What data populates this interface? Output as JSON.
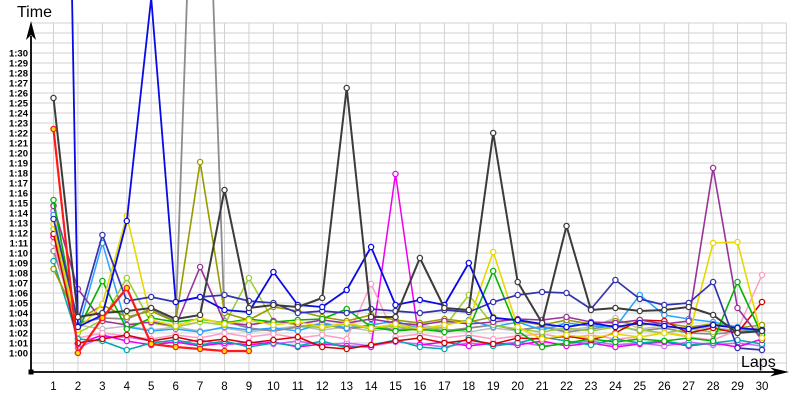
{
  "titles": {
    "y_axis": "Time",
    "x_axis": "Laps"
  },
  "colors": {
    "background": "#ffffff",
    "grid": "#d2d2d2",
    "axis": "#000000"
  },
  "chart_data": {
    "type": "line",
    "title": "",
    "xlabel": "Laps",
    "ylabel": "Time",
    "x_tick_labels": [
      "1",
      "2",
      "3",
      "4",
      "5",
      "6",
      "7",
      "8",
      "9",
      "10",
      "11",
      "12",
      "13",
      "14",
      "15",
      "16",
      "17",
      "18",
      "19",
      "20",
      "21",
      "22",
      "23",
      "24",
      "25",
      "26",
      "27",
      "28",
      "29",
      "30"
    ],
    "y_tick_labels": [
      "1:00",
      "1:01",
      "1:02",
      "1:03",
      "1:04",
      "1:05",
      "1:06",
      "1:07",
      "1:08",
      "1:09",
      "1:10",
      "1:11",
      "1:12",
      "1:13",
      "1:14",
      "1:15",
      "1:16",
      "1:17",
      "1:18",
      "1:19",
      "1:20",
      "1:21",
      "1:22",
      "1:23",
      "1:24",
      "1:25",
      "1:26",
      "1:27",
      "1:28",
      "1:29",
      "1:30"
    ],
    "y_tick_seconds_start": 60,
    "ylim_seconds": [
      59,
      93
    ],
    "xlim_laps": [
      1,
      30
    ],
    "grid": true,
    "legend": "none",
    "units_note": "values are lap times in seconds; 60 = 1:00; values above 93 plot off-chart",
    "series": [
      {
        "name": "silver",
        "color": "#BDBDBD",
        "width": 1.5,
        "marker_fill": "#ffffff",
        "values": [
          74.8,
          62.8,
          62.4,
          62.7,
          62.3,
          62.6,
          62.2,
          62.5,
          62.1,
          62.4,
          62.7,
          62.3,
          62.6,
          62.2,
          62.5,
          62.8,
          62.4,
          62.1,
          62.5,
          62.2,
          62.7,
          62.3,
          62.6,
          63.5,
          62.4,
          62.7,
          62.3,
          62.6,
          62.2,
          62.6
        ]
      },
      {
        "name": "gray",
        "color": "#8C8C8C",
        "width": 1.8,
        "marker_fill": "#ffffff",
        "values": [
          70.2,
          63.0,
          63.5,
          63.4,
          64.4,
          63.2,
          133.0,
          63.2,
          62.5,
          62.2,
          62.6,
          62.9,
          62.4,
          62.7,
          62.3,
          62.6,
          62.2,
          62.5,
          62.8,
          62.3,
          62.6,
          62.1,
          62.4,
          62.8,
          62.2,
          62.5,
          62.0,
          61.9,
          62.1,
          62.4
        ]
      },
      {
        "name": "violet",
        "color": "#CC66FF",
        "width": 1.5,
        "marker_fill": "#ffffff",
        "values": [
          74.2,
          60.5,
          61.6,
          61.6,
          61.2,
          61.0,
          61.3,
          60.8,
          61.1,
          60.9,
          61.2,
          60.8,
          61.0,
          60.7,
          61.1,
          60.9,
          60.6,
          61.0,
          60.8,
          61.1,
          60.7,
          60.9,
          61.2,
          60.8,
          61.0,
          60.7,
          61.1,
          60.8,
          61.0,
          60.7
        ]
      },
      {
        "name": "magenta",
        "color": "#EE00EE",
        "width": 1.5,
        "marker_fill": "#ffffff",
        "values": [
          71.6,
          60.9,
          61.8,
          61.2,
          60.8,
          61.1,
          60.7,
          61.0,
          60.8,
          61.1,
          60.6,
          60.9,
          60.7,
          60.6,
          77.9,
          60.8,
          61.1,
          60.7,
          61.0,
          60.8,
          61.2,
          60.7,
          61.0,
          60.6,
          60.9,
          61.1,
          60.7,
          61.0,
          60.6,
          61.4
        ]
      },
      {
        "name": "pink",
        "color": "#FF9DC5",
        "width": 1.5,
        "marker_fill": "#ffffff",
        "values": [
          71.0,
          61.5,
          62.0,
          61.7,
          61.4,
          61.8,
          61.5,
          62.0,
          61.6,
          61.9,
          61.5,
          61.8,
          61.4,
          66.9,
          61.6,
          61.9,
          61.5,
          61.8,
          61.4,
          61.7,
          61.9,
          61.5,
          61.8,
          61.4,
          61.6,
          62.0,
          61.6,
          61.3,
          62.3,
          67.8
        ]
      },
      {
        "name": "teal",
        "color": "#00AAAA",
        "width": 1.5,
        "marker_fill": "#ffffff",
        "values": [
          69.2,
          61.4,
          61.2,
          60.3,
          61.0,
          61.3,
          60.8,
          61.2,
          60.6,
          61.0,
          60.7,
          61.2,
          60.5,
          60.8,
          61.3,
          60.6,
          60.4,
          61.5,
          60.7,
          61.0,
          61.6,
          61.2,
          60.8,
          61.4,
          61.0,
          61.2,
          60.8,
          61.0,
          61.3,
          60.9
        ]
      },
      {
        "name": "skyblue",
        "color": "#29A3FF",
        "width": 1.5,
        "marker_fill": "#ffffff",
        "values": [
          73.8,
          62.2,
          71.0,
          62.6,
          62.2,
          62.4,
          62.1,
          62.6,
          62.3,
          62.5,
          62.2,
          63.0,
          62.5,
          62.8,
          63.2,
          62.4,
          62.8,
          63.3,
          62.6,
          63.1,
          62.3,
          63.0,
          62.7,
          62.6,
          65.8,
          63.8,
          63.4,
          63.1,
          62.6,
          61.9
        ]
      },
      {
        "name": "yellowgreen",
        "color": "#9ACD32",
        "width": 1.5,
        "marker_fill": "#ffffff",
        "values": [
          72.4,
          62.0,
          63.3,
          67.5,
          63.0,
          62.6,
          63.1,
          62.8,
          67.5,
          63.2,
          62.8,
          62.5,
          62.9,
          62.4,
          62.7,
          62.2,
          62.6,
          65.8,
          62.8,
          62.4,
          62.1,
          62.5,
          62.2,
          62.6,
          62.3,
          62.0,
          62.4,
          62.1,
          62.5,
          62.2
        ]
      },
      {
        "name": "olive",
        "color": "#9A9A00",
        "width": 1.6,
        "marker_fill": "#ffffff",
        "values": [
          68.4,
          63.3,
          64.8,
          63.6,
          64.2,
          63.1,
          79.1,
          64.0,
          63.3,
          64.6,
          64.2,
          63.6,
          63.2,
          63.8,
          63.3,
          63.0,
          63.4,
          63.1,
          63.6,
          63.2,
          62.8,
          63.3,
          62.9,
          63.2,
          62.8,
          63.0,
          62.6,
          62.9,
          62.5,
          62.8
        ]
      },
      {
        "name": "crimson",
        "color": "#D00000",
        "width": 1.5,
        "marker_fill": "#ffffff",
        "values": [
          71.9,
          61.0,
          61.4,
          61.8,
          61.2,
          61.6,
          61.1,
          61.4,
          61.0,
          61.3,
          61.6,
          60.6,
          60.4,
          60.8,
          61.2,
          61.5,
          61.0,
          61.3,
          60.9,
          61.5,
          61.4,
          61.7,
          61.3,
          62.0,
          63.3,
          63.2,
          62.0,
          62.5,
          62.0,
          65.1
        ]
      },
      {
        "name": "purple",
        "color": "#993399",
        "width": 1.6,
        "marker_fill": "#ffffff",
        "values": [
          74.7,
          66.4,
          63.2,
          62.8,
          63.1,
          62.7,
          68.6,
          63.0,
          62.8,
          63.2,
          62.9,
          63.3,
          63.0,
          63.4,
          63.0,
          62.8,
          63.2,
          62.9,
          63.1,
          63.4,
          63.3,
          63.6,
          63.1,
          63.0,
          63.3,
          62.9,
          63.2,
          78.5,
          64.5,
          61.3
        ]
      },
      {
        "name": "green",
        "color": "#00B400",
        "width": 1.6,
        "marker_fill": "#ffffff",
        "values": [
          75.3,
          62.3,
          67.2,
          62.4,
          63.5,
          63.1,
          63.4,
          63.0,
          63.4,
          63.1,
          63.3,
          63.4,
          64.4,
          62.6,
          62.2,
          62.4,
          62.1,
          62.4,
          68.2,
          62.2,
          60.6,
          61.0,
          61.4,
          61.1,
          61.4,
          61.2,
          61.5,
          61.2,
          67.1,
          61.8
        ]
      },
      {
        "name": "yellow",
        "color": "#E8D800",
        "width": 1.6,
        "marker_fill": "#ffffff",
        "values": [
          72.9,
          62.3,
          64.9,
          73.7,
          63.3,
          62.7,
          63.5,
          62.9,
          63.3,
          62.8,
          63.1,
          62.6,
          63.0,
          62.5,
          62.9,
          62.4,
          62.8,
          63.2,
          70.1,
          62.6,
          61.4,
          61.8,
          61.5,
          61.9,
          61.6,
          62.0,
          61.7,
          71.0,
          71.1,
          61.5
        ]
      },
      {
        "name": "navy",
        "color": "#3333B0",
        "width": 1.7,
        "marker_fill": "#ffffff",
        "values": [
          73.4,
          63.2,
          71.8,
          65.2,
          65.6,
          65.1,
          65.6,
          65.8,
          65.2,
          65.0,
          64.0,
          64.2,
          64.0,
          64.4,
          64.2,
          64.0,
          64.3,
          64.1,
          65.1,
          65.8,
          66.1,
          66.0,
          64.4,
          67.3,
          65.4,
          64.8,
          65.0,
          67.1,
          60.5,
          60.3
        ]
      },
      {
        "name": "blue",
        "color": "#0A0AE6",
        "width": 1.8,
        "marker_fill": "#ffffff",
        "values": [
          200.0,
          62.6,
          63.8,
          73.2,
          95.5,
          65.1,
          65.6,
          64.3,
          64.1,
          68.1,
          64.8,
          64.6,
          66.3,
          70.6,
          64.8,
          65.3,
          64.8,
          69.0,
          63.5,
          63.3,
          62.9,
          62.6,
          63.0,
          62.6,
          63.0,
          62.7,
          62.4,
          62.8,
          62.5,
          62.3
        ]
      },
      {
        "name": "black",
        "color": "#3C3C3C",
        "width": 2,
        "marker_fill": "#ffffff",
        "values": [
          85.5,
          63.6,
          64.0,
          64.2,
          64.5,
          63.4,
          63.8,
          76.3,
          64.5,
          64.8,
          64.6,
          65.5,
          86.5,
          63.6,
          63.6,
          69.5,
          64.5,
          64.3,
          82.0,
          67.1,
          63.0,
          72.7,
          64.3,
          64.5,
          64.2,
          64.3,
          64.6,
          63.8,
          62.0,
          62.2
        ]
      },
      {
        "name": "red",
        "color": "#FF1A1A",
        "width": 2.2,
        "marker_fill": "#FFE000",
        "values": [
          82.4,
          60.0,
          63.5,
          66.5,
          60.9,
          60.6,
          60.4,
          60.2,
          60.2,
          null,
          null,
          null,
          null,
          null,
          null,
          null,
          null,
          null,
          null,
          null,
          null,
          null,
          null,
          null,
          null,
          null,
          null,
          null,
          null,
          null
        ]
      }
    ]
  }
}
